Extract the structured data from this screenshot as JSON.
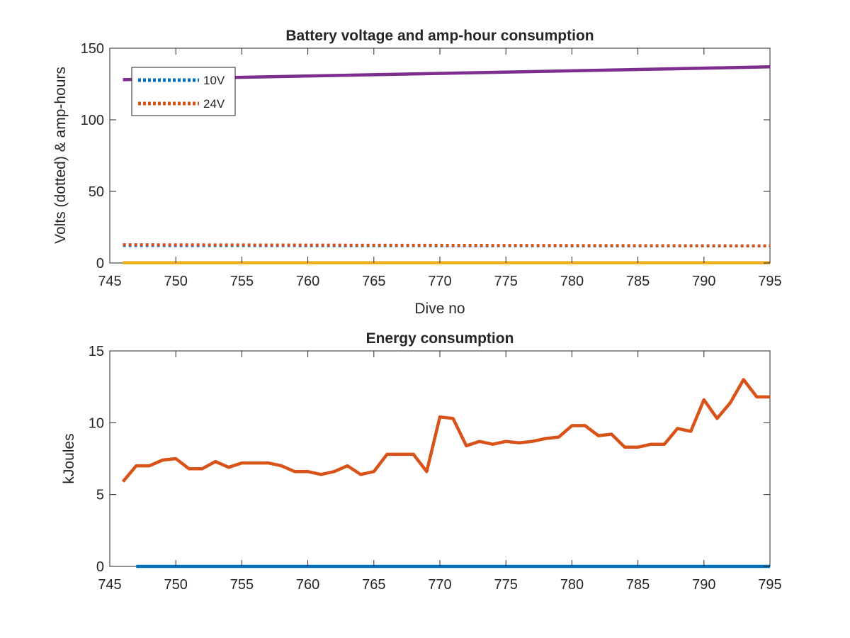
{
  "chart_data": [
    {
      "type": "line",
      "title": "Battery voltage and amp-hour consumption",
      "xlabel": "Dive no",
      "ylabel": "Volts (dotted) & amp-hours",
      "xlim": [
        745,
        795
      ],
      "ylim": [
        0,
        150
      ],
      "xticks": [
        745,
        750,
        755,
        760,
        765,
        770,
        775,
        780,
        785,
        790,
        795
      ],
      "yticks": [
        0,
        50,
        100,
        150
      ],
      "grid": false,
      "legend": {
        "placement": "top-left",
        "entries": [
          "10V",
          "24V"
        ]
      },
      "series": [
        {
          "name": "10V",
          "style": "dotted",
          "color": "#0072BD",
          "x": [
            746,
            795
          ],
          "y": [
            12.2,
            11.9
          ]
        },
        {
          "name": "24V",
          "style": "dotted",
          "color": "#D95319",
          "x": [
            746,
            795
          ],
          "y": [
            12.8,
            12.0
          ]
        },
        {
          "style": "solid",
          "color": "#7E2F8E",
          "x": [
            746,
            795
          ],
          "y": [
            128,
            137
          ]
        },
        {
          "style": "solid",
          "color": "#EDB120",
          "x": [
            746,
            795
          ],
          "y": [
            0.2,
            0.2
          ]
        }
      ]
    },
    {
      "type": "line",
      "title": "Energy consumption",
      "xlabel": "",
      "ylabel": "kJoules",
      "xlim": [
        745,
        795
      ],
      "ylim": [
        0,
        15
      ],
      "xticks": [
        745,
        750,
        755,
        760,
        765,
        770,
        775,
        780,
        785,
        790,
        795
      ],
      "yticks": [
        0,
        5,
        10,
        15
      ],
      "grid": false,
      "series": [
        {
          "style": "solid",
          "color": "#0072BD",
          "x": [
            747,
            795
          ],
          "y": [
            0,
            0
          ]
        },
        {
          "style": "solid",
          "color": "#D95319",
          "x": [
            746,
            747,
            748,
            749,
            750,
            751,
            752,
            753,
            754,
            755,
            756,
            757,
            758,
            759,
            760,
            761,
            762,
            763,
            764,
            765,
            766,
            767,
            768,
            769,
            770,
            771,
            772,
            773,
            774,
            775,
            776,
            777,
            778,
            779,
            780,
            781,
            782,
            783,
            784,
            785,
            786,
            787,
            788,
            789,
            790,
            791,
            792,
            793,
            794,
            795
          ],
          "y": [
            5.9,
            7.0,
            7.0,
            7.4,
            7.5,
            6.8,
            6.8,
            7.3,
            6.9,
            7.2,
            7.2,
            7.2,
            7.0,
            6.6,
            6.6,
            6.4,
            6.6,
            7.0,
            6.4,
            6.6,
            7.8,
            7.8,
            7.8,
            6.6,
            10.4,
            10.3,
            8.4,
            8.7,
            8.5,
            8.7,
            8.6,
            8.7,
            8.9,
            9.0,
            9.8,
            9.8,
            9.1,
            9.2,
            8.3,
            8.3,
            8.5,
            8.5,
            9.6,
            9.4,
            11.6,
            10.3,
            11.4,
            13.0,
            11.8,
            11.8
          ]
        }
      ]
    }
  ]
}
